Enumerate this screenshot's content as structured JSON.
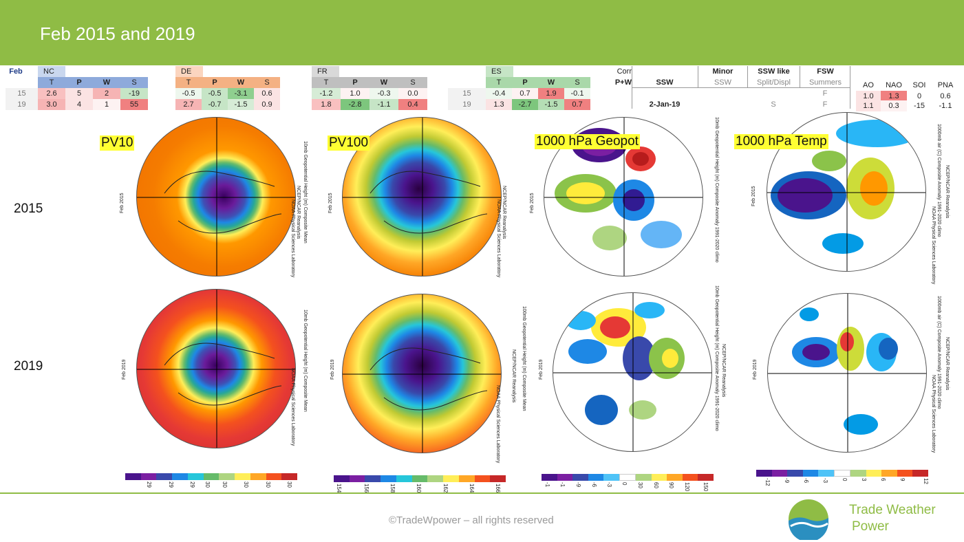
{
  "header": {
    "title": "Feb 2015 and 2019"
  },
  "table": {
    "feb": "Feb",
    "nc": {
      "name": "NC",
      "cols": [
        "T",
        "P",
        "W",
        "S"
      ],
      "r15": [
        "2.6",
        "5",
        "2",
        "-19"
      ],
      "r19": [
        "3.0",
        "4",
        "1",
        "55"
      ]
    },
    "de": {
      "name": "DE",
      "cols": [
        "T",
        "P",
        "W",
        "S"
      ],
      "r15": [
        "-0.5",
        "-0.5",
        "-3.1",
        "0.6"
      ],
      "r19": [
        "2.7",
        "-0.7",
        "-1.5",
        "0.9"
      ]
    },
    "fr": {
      "name": "FR",
      "cols": [
        "T",
        "P",
        "W",
        "S"
      ],
      "r15": [
        "-1.2",
        "1.0",
        "-0.3",
        "0.0"
      ],
      "r19": [
        "1.8",
        "-2.8",
        "-1.1",
        "0.4"
      ]
    },
    "es": {
      "name": "ES",
      "cols": [
        "T",
        "P",
        "W",
        "S"
      ],
      "r15": [
        "-0.4",
        "0.7",
        "1.9",
        "-0.1"
      ],
      "r19": [
        "1.3",
        "-2.7",
        "-1.5",
        "0.7"
      ]
    },
    "years": [
      "15",
      "19"
    ],
    "corr": "Corr",
    "pw": "P+W",
    "ssw": "SSW",
    "ssw_date": "2-Jan-19",
    "minor": "Minor",
    "minor_sub": "SSW",
    "ssw_like": "SSW like",
    "ssw_like_sub": "Split/Displ",
    "ssw_like_19": "S",
    "fsw": "FSW",
    "fsw_sub": "Summers",
    "fsw_15": "F",
    "fsw_19": "F",
    "idx_cols": [
      "AO",
      "NAO",
      "SOI",
      "PNA"
    ],
    "idx15": [
      "1.0",
      "1.3",
      "0",
      "0.6"
    ],
    "idx19": [
      "1.1",
      "0.3",
      "-15",
      "-1.1"
    ]
  },
  "labels": {
    "pv10": "PV10",
    "pv100": "PV100",
    "geopot": "1000 hPa Geopot",
    "temp": "1000 hPa Temp"
  },
  "years": {
    "y2015": "2015",
    "y2019": "2019"
  },
  "maplabels": {
    "feb2015": "Feb 2015",
    "feb2019": "Feb 2019",
    "pv10_desc": "10mb Geopotential Height (m) Composite Mean",
    "pv100_desc": "100mb Geopotential Height (m) Composite Mean",
    "geo_desc": "10mb Geopotential Height (m) Composite Anomaly 1991-2020 climo",
    "temp_desc": "1000mb air (C) Composite Anomaly 1991-2020 climo",
    "ncep": "NCEP/NCAR Reanalysis",
    "noaa": "NOAA Physical Sciences Laboratory"
  },
  "colorbars": {
    "pv10": [
      "29",
      "29",
      "29",
      "30",
      "30",
      "30",
      "30",
      "30"
    ],
    "pv100": [
      "154",
      "156",
      "158",
      "160",
      "162",
      "164",
      "166"
    ],
    "geo": [
      "-1",
      "-1",
      "-9",
      "-6",
      "-3",
      "0",
      "30",
      "60",
      "90",
      "120",
      "150"
    ],
    "temp": [
      "-12",
      "-9",
      "-6",
      "-3",
      "0",
      "3",
      "6",
      "9",
      "12"
    ]
  },
  "footer": {
    "copyright": "©TradeWpower – all rights reserved",
    "brand1": "Trade Weather",
    "brand2": "Power"
  },
  "colors": {
    "accent": "#8fbc45"
  }
}
